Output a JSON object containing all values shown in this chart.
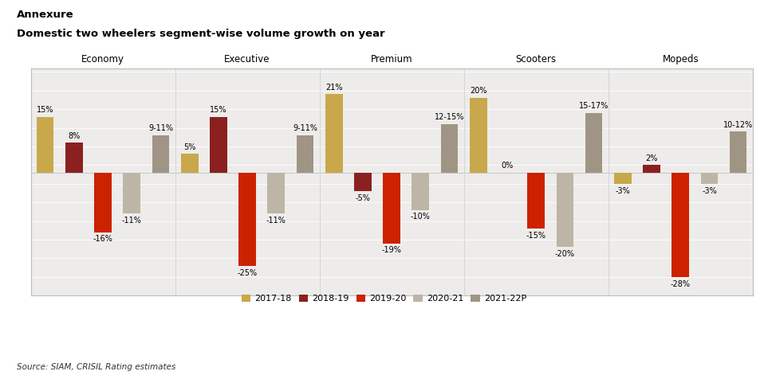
{
  "title_line1": "Annexure",
  "title_line2": "Domestic two wheelers segment-wise volume growth on year",
  "source": "Source: SIAM, CRISIL Rating estimates",
  "segments": [
    "Economy",
    "Executive",
    "Premium",
    "Scooters",
    "Mopeds"
  ],
  "years": [
    "2017-18",
    "2018-19",
    "2019-20",
    "2020-21",
    "2021-22P"
  ],
  "colors": [
    "#C8A84B",
    "#8B2020",
    "#CC2200",
    "#BDB5A6",
    "#A09585"
  ],
  "data": {
    "Economy": [
      15,
      8,
      -16,
      -11,
      10
    ],
    "Executive": [
      5,
      15,
      -25,
      -11,
      10
    ],
    "Premium": [
      21,
      -5,
      -19,
      -10,
      13
    ],
    "Scooters": [
      20,
      0,
      -15,
      -20,
      16
    ],
    "Mopeds": [
      -3,
      2,
      -28,
      -3,
      11
    ]
  },
  "labels": {
    "Economy": [
      "15%",
      "8%",
      "-16%",
      "-11%",
      "9-11%"
    ],
    "Executive": [
      "5%",
      "15%",
      "-25%",
      "-11%",
      "9-11%"
    ],
    "Premium": [
      "21%",
      "-5%",
      "-19%",
      "-10%",
      "12-15%"
    ],
    "Scooters": [
      "20%",
      "0%",
      "-15%",
      "-20%",
      "15-17%"
    ],
    "Mopeds": [
      "-3%",
      "2%",
      "-28%",
      "-3%",
      "10-12%"
    ]
  },
  "ylim": [
    -33,
    28
  ],
  "background_color": "#FFFFFF",
  "plot_bg_color": "#EDECEA",
  "grid_color": "#FFFFFF"
}
